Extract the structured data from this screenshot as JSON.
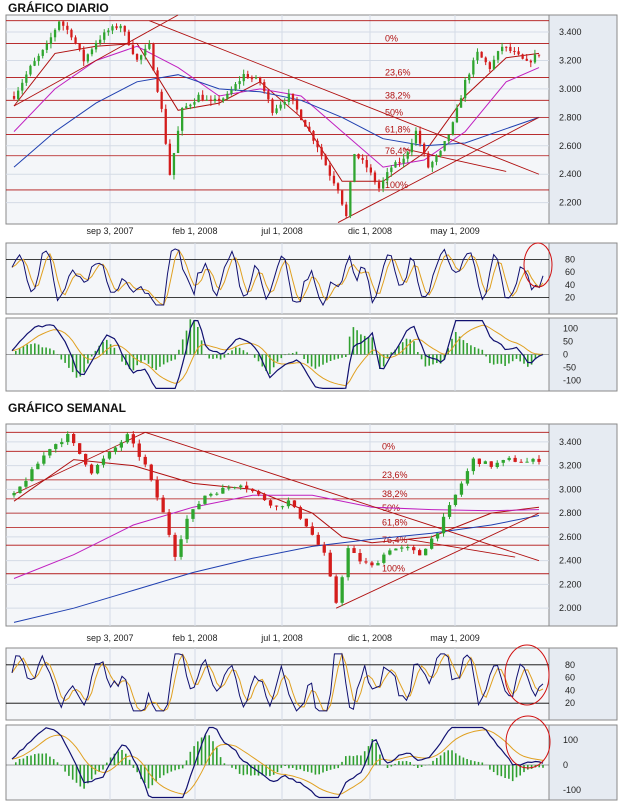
{
  "colors": {
    "panel_bg": "#f4f6f9",
    "panel_border": "#8a8a8a",
    "grid": "#d4dbe6",
    "axis_band": "#e6ebf2",
    "candle_up": "#2fa52f",
    "candle_down": "#d41c1c",
    "fib_line": "#b01010",
    "trend_line": "#b01010",
    "sma_short": "#b01010",
    "sma_mid": "#c020c0",
    "sma_long": "#2040b0",
    "osc_main": "#101070",
    "osc_signal": "#e0a020",
    "macd_hist": "#30a030",
    "highlight_circle": "#d01010"
  },
  "daily": {
    "title": "GRÁFICO DIARIO",
    "x_ticks": [
      "sep 3, 2007",
      "feb 1, 2008",
      "jul 1, 2008",
      "dic 1, 2008",
      "may 1, 2009"
    ],
    "y_ticks": [
      "3.400",
      "3.200",
      "3.000",
      "2.800",
      "2.600",
      "2.400",
      "2.200"
    ],
    "fib_labels": [
      "0%",
      "23,6%",
      "38,2%",
      "50%",
      "61,8%",
      "76,4%",
      "100%"
    ],
    "stoch_ticks": [
      "80",
      "60",
      "40",
      "20"
    ],
    "macd_ticks": [
      "100",
      "50",
      "0",
      "-50",
      "-100"
    ]
  },
  "weekly": {
    "title": "GRÁFICO SEMANAL",
    "x_ticks": [
      "sep 3, 2007",
      "feb 1, 2008",
      "jul 1, 2008",
      "dic 1, 2008",
      "may 1, 2009"
    ],
    "y_ticks": [
      "3.400",
      "3.200",
      "3.000",
      "2.800",
      "2.600",
      "2.400",
      "2.200",
      "2.000"
    ],
    "fib_labels": [
      "0%",
      "23,6%",
      "38,2%",
      "50%",
      "61,8%",
      "76,4%",
      "100%"
    ],
    "stoch_ticks": [
      "80",
      "60",
      "40",
      "20"
    ],
    "macd_ticks": [
      "100",
      "0",
      "-100"
    ]
  },
  "chart_data": [
    {
      "type": "candlestick",
      "title": "GRÁFICO DIARIO",
      "x_tick_labels": [
        "sep 3, 2007",
        "feb 1, 2008",
        "jul 1, 2008",
        "dic 1, 2008",
        "may 1, 2009"
      ],
      "ylim": [
        2050,
        3520
      ],
      "y_ticks": [
        3400,
        3200,
        3000,
        2800,
        2600,
        2400,
        2200
      ],
      "price_path": [
        [
          0,
          2950
        ],
        [
          4,
          3150
        ],
        [
          8,
          3300
        ],
        [
          11,
          3480
        ],
        [
          14,
          3380
        ],
        [
          17,
          3200
        ],
        [
          20,
          3330
        ],
        [
          23,
          3410
        ],
        [
          26,
          3450
        ],
        [
          30,
          3200
        ],
        [
          33,
          3300
        ],
        [
          36,
          2850
        ],
        [
          38,
          2400
        ],
        [
          41,
          2850
        ],
        [
          45,
          2950
        ],
        [
          48,
          2900
        ],
        [
          52,
          2950
        ],
        [
          56,
          3100
        ],
        [
          60,
          3050
        ],
        [
          63,
          2850
        ],
        [
          67,
          2950
        ],
        [
          71,
          2750
        ],
        [
          74,
          2600
        ],
        [
          77,
          2400
        ],
        [
          79,
          2300
        ],
        [
          81,
          2100
        ],
        [
          83,
          2550
        ],
        [
          86,
          2450
        ],
        [
          89,
          2300
        ],
        [
          92,
          2450
        ],
        [
          95,
          2500
        ],
        [
          98,
          2700
        ],
        [
          101,
          2450
        ],
        [
          104,
          2550
        ],
        [
          107,
          2750
        ],
        [
          110,
          3050
        ],
        [
          113,
          3250
        ],
        [
          116,
          3150
        ],
        [
          119,
          3300
        ],
        [
          122,
          3250
        ],
        [
          125,
          3180
        ],
        [
          128,
          3250
        ]
      ],
      "fibonacci": [
        {
          "label": "0%",
          "value": 3320
        },
        {
          "label": "23,6%",
          "value": 3080
        },
        {
          "label": "38,2%",
          "value": 2920
        },
        {
          "label": "50%",
          "value": 2800
        },
        {
          "label": "61,8%",
          "value": 2680
        },
        {
          "label": "76,4%",
          "value": 2530
        },
        {
          "label": "100%",
          "value": 2290
        }
      ],
      "horizontal_lines": [
        3480,
        2290
      ],
      "moving_averages": [
        {
          "values": [
            [
              0,
              2880
            ],
            [
              10,
              3250
            ],
            [
              20,
              3300
            ],
            [
              30,
              3320
            ],
            [
              40,
              2850
            ],
            [
              50,
              2900
            ],
            [
              60,
              3050
            ],
            [
              70,
              2800
            ],
            [
              80,
              2350
            ],
            [
              90,
              2350
            ],
            [
              100,
              2550
            ],
            [
              110,
              2950
            ],
            [
              120,
              3220
            ],
            [
              128,
              3250
            ]
          ]
        },
        {
          "values": [
            [
              0,
              2700
            ],
            [
              10,
              3000
            ],
            [
              20,
              3200
            ],
            [
              30,
              3300
            ],
            [
              40,
              3150
            ],
            [
              50,
              2950
            ],
            [
              60,
              3000
            ],
            [
              70,
              2950
            ],
            [
              80,
              2700
            ],
            [
              90,
              2450
            ],
            [
              100,
              2500
            ],
            [
              110,
              2700
            ],
            [
              120,
              3050
            ],
            [
              128,
              3150
            ]
          ]
        },
        {
          "values": [
            [
              0,
              2450
            ],
            [
              10,
              2700
            ],
            [
              20,
              2900
            ],
            [
              30,
              3050
            ],
            [
              40,
              3100
            ],
            [
              50,
              3000
            ],
            [
              60,
              2980
            ],
            [
              70,
              2920
            ],
            [
              80,
              2800
            ],
            [
              90,
              2650
            ],
            [
              100,
              2600
            ],
            [
              110,
              2620
            ],
            [
              120,
              2720
            ],
            [
              128,
              2800
            ]
          ]
        }
      ],
      "trend_lines": [
        [
          [
            0,
            2880
          ],
          [
            40,
            3520
          ]
        ],
        [
          [
            33,
            3480
          ],
          [
            128,
            2400
          ]
        ],
        [
          [
            79,
            2060
          ],
          [
            128,
            2800
          ]
        ],
        [
          [
            95,
            2580
          ],
          [
            120,
            2420
          ]
        ]
      ],
      "stochastic": {
        "ylim": [
          0,
          100
        ],
        "levels": [
          80,
          20
        ],
        "ticks": [
          80,
          60,
          40,
          20
        ]
      },
      "macd": {
        "ylim": [
          -140,
          140
        ],
        "ticks": [
          100,
          50,
          0,
          -50,
          -100
        ]
      }
    },
    {
      "type": "candlestick",
      "title": "GRÁFICO SEMANAL",
      "x_tick_labels": [
        "sep 3, 2007",
        "feb 1, 2008",
        "jul 1, 2008",
        "dic 1, 2008",
        "may 1, 2009"
      ],
      "ylim": [
        1850,
        3550
      ],
      "y_ticks": [
        3400,
        3200,
        3000,
        2800,
        2600,
        2400,
        2200,
        2000
      ],
      "price_path": [
        [
          0,
          2950
        ],
        [
          3,
          3150
        ],
        [
          6,
          3350
        ],
        [
          9,
          3450
        ],
        [
          11,
          3300
        ],
        [
          13,
          3150
        ],
        [
          16,
          3300
        ],
        [
          19,
          3450
        ],
        [
          22,
          3200
        ],
        [
          25,
          2800
        ],
        [
          27,
          2450
        ],
        [
          29,
          2750
        ],
        [
          32,
          2950
        ],
        [
          35,
          3000
        ],
        [
          38,
          3050
        ],
        [
          41,
          2950
        ],
        [
          44,
          2850
        ],
        [
          46,
          2900
        ],
        [
          49,
          2700
        ],
        [
          52,
          2450
        ],
        [
          54,
          2050
        ],
        [
          56,
          2500
        ],
        [
          58,
          2400
        ],
        [
          60,
          2350
        ],
        [
          63,
          2500
        ],
        [
          66,
          2500
        ],
        [
          68,
          2450
        ],
        [
          71,
          2650
        ],
        [
          74,
          2950
        ],
        [
          77,
          3250
        ],
        [
          80,
          3200
        ],
        [
          83,
          3250
        ],
        [
          86,
          3230
        ],
        [
          88,
          3250
        ]
      ],
      "fibonacci": [
        {
          "label": "0%",
          "value": 3320
        },
        {
          "label": "23,6%",
          "value": 3080
        },
        {
          "label": "38,2%",
          "value": 2920
        },
        {
          "label": "50%",
          "value": 2800
        },
        {
          "label": "61,8%",
          "value": 2680
        },
        {
          "label": "76,4%",
          "value": 2530
        },
        {
          "label": "100%",
          "value": 2290
        }
      ],
      "horizontal_lines": [
        3480,
        2290
      ],
      "moving_averages": [
        {
          "values": [
            [
              0,
              2900
            ],
            [
              10,
              3250
            ],
            [
              20,
              3200
            ],
            [
              30,
              3050
            ],
            [
              40,
              3000
            ],
            [
              50,
              2800
            ],
            [
              55,
              2600
            ],
            [
              60,
              2550
            ],
            [
              70,
              2600
            ],
            [
              80,
              2800
            ],
            [
              88,
              2850
            ]
          ]
        },
        {
          "values": [
            [
              0,
              2250
            ],
            [
              10,
              2450
            ],
            [
              20,
              2700
            ],
            [
              30,
              2850
            ],
            [
              40,
              2950
            ],
            [
              50,
              2950
            ],
            [
              60,
              2850
            ],
            [
              70,
              2830
            ],
            [
              80,
              2820
            ],
            [
              88,
              2830
            ]
          ]
        },
        {
          "values": [
            [
              0,
              1880
            ],
            [
              10,
              2000
            ],
            [
              20,
              2150
            ],
            [
              30,
              2300
            ],
            [
              40,
              2420
            ],
            [
              50,
              2520
            ],
            [
              60,
              2580
            ],
            [
              70,
              2630
            ],
            [
              80,
              2700
            ],
            [
              88,
              2780
            ]
          ]
        }
      ],
      "trend_lines": [
        [
          [
            0,
            2960
          ],
          [
            22,
            3480
          ]
        ],
        [
          [
            22,
            3480
          ],
          [
            88,
            2400
          ]
        ],
        [
          [
            54,
            2000
          ],
          [
            88,
            2800
          ]
        ],
        [
          [
            66,
            2580
          ],
          [
            84,
            2430
          ]
        ]
      ],
      "stochastic": {
        "ylim": [
          0,
          100
        ],
        "levels": [
          80,
          20
        ],
        "ticks": [
          80,
          60,
          40,
          20
        ]
      },
      "macd": {
        "ylim": [
          -140,
          160
        ],
        "ticks": [
          100,
          0,
          -100
        ]
      }
    }
  ]
}
